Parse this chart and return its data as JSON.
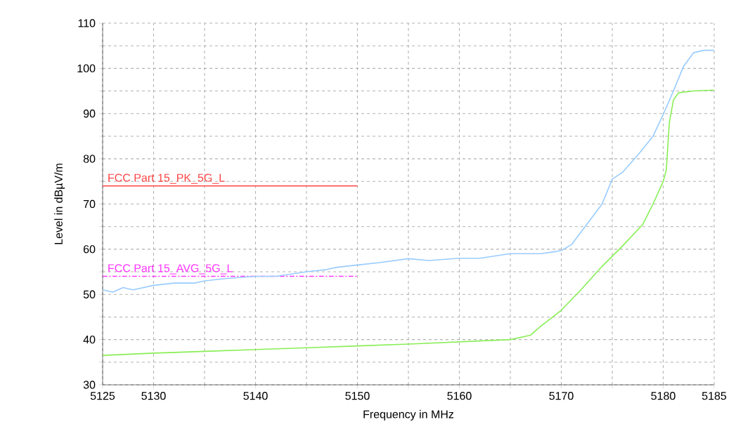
{
  "chart_data": {
    "type": "line",
    "xlabel": "Frequency in MHz",
    "ylabel": "Level in dBµV/m",
    "xlim": [
      5125,
      5185
    ],
    "ylim": [
      30,
      110
    ],
    "xticks": [
      5125,
      5130,
      {
        "value": 5135,
        "label": null
      },
      5140,
      {
        "value": 5145,
        "label": null
      },
      5150,
      {
        "value": 5155,
        "label": null
      },
      5160,
      {
        "value": 5165,
        "label": null
      },
      5170,
      {
        "value": 5175,
        "label": null
      },
      5180,
      5185
    ],
    "yticks": [
      30,
      {
        "value": 35,
        "label": null
      },
      40,
      {
        "value": 45,
        "label": null
      },
      50,
      {
        "value": 55,
        "label": null
      },
      60,
      {
        "value": 65,
        "label": null
      },
      70,
      {
        "value": 75,
        "label": null
      },
      80,
      {
        "value": 85,
        "label": null
      },
      90,
      {
        "value": 95,
        "label": null
      },
      100,
      {
        "value": 105,
        "label": null
      },
      110
    ],
    "grid": true,
    "marker": "none",
    "series": [
      {
        "name": "FCC Part 15_PK_5G_L",
        "color": "#ff4444",
        "line_style": "solid",
        "x": [
          5125,
          5150
        ],
        "values": [
          74,
          74
        ]
      },
      {
        "name": "FCC Part 15_AVG_5G_L",
        "color": "#ff33ff",
        "line_style": "dashed",
        "x": [
          5125,
          5150
        ],
        "values": [
          54,
          54
        ]
      },
      {
        "color": "#99ccff",
        "line_style": "solid",
        "x": [
          5125,
          5126,
          5127,
          5128,
          5130,
          5132,
          5134,
          5135,
          5137,
          5140,
          5142,
          5145,
          5147,
          5148,
          5150,
          5152,
          5155,
          5157,
          5160,
          5162,
          5165,
          5168,
          5169.5,
          5170,
          5171,
          5172.5,
          5174,
          5175,
          5176,
          5177.5,
          5179,
          5180,
          5181,
          5182,
          5183,
          5184,
          5185
        ],
        "values": [
          51,
          50.5,
          51.5,
          51,
          52,
          52.5,
          52.5,
          53,
          53.5,
          54,
          54,
          55,
          55.5,
          56,
          56.5,
          57,
          57.9,
          57.5,
          58,
          58,
          59,
          59,
          59.5,
          59.7,
          61,
          65.5,
          70,
          75.5,
          77,
          80.8,
          85,
          89.8,
          95,
          100.5,
          103.5,
          104,
          104
        ]
      },
      {
        "color": "#88ee55",
        "line_style": "solid",
        "x": [
          5125,
          5130,
          5135,
          5140,
          5145,
          5150,
          5155,
          5160,
          5165,
          5167,
          5168,
          5170,
          5172,
          5174,
          5176,
          5178,
          5179,
          5180,
          5180.3,
          5180.6,
          5181,
          5181.5,
          5183,
          5185
        ],
        "values": [
          36.5,
          37,
          37.4,
          37.8,
          38.2,
          38.6,
          39,
          39.5,
          40,
          41,
          43,
          46.5,
          51.2,
          56.2,
          60.7,
          65.5,
          70,
          75,
          77.5,
          88,
          93,
          94.6,
          95,
          95.2
        ]
      }
    ]
  }
}
